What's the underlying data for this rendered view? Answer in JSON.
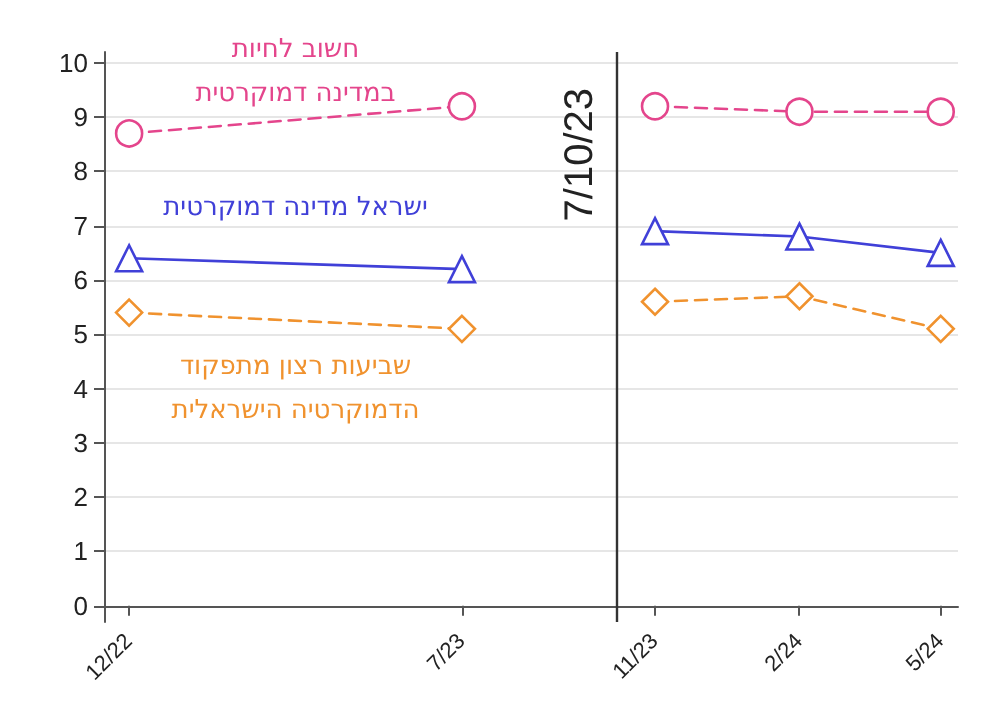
{
  "chart_data": {
    "type": "line",
    "x": [
      "2022-12-01",
      "2023-07-01",
      "2023-10-07",
      "2023-11-01",
      "2024-02-01",
      "2024-05-01"
    ],
    "series": [
      {
        "name": "חשוב לחיות במדינה דמוקרטית",
        "color": "#e4458c",
        "values": [
          8.7,
          9.2,
          null,
          9.2,
          9.1,
          9.1
        ],
        "marker": "circle",
        "line_style": "dashed"
      },
      {
        "name": "ישראל מדינה דמוקרטית",
        "color": "#4040d8",
        "values": [
          6.4,
          6.2,
          null,
          6.9,
          6.8,
          6.5
        ],
        "marker": "triangle",
        "line_style": "solid"
      },
      {
        "name": "שביעות רצון מתפקוד הדמוקרטיה הישראלית",
        "color": "#f0922e",
        "values": [
          5.4,
          5.1,
          null,
          5.6,
          5.7,
          5.1
        ],
        "marker": "diamond",
        "line_style": "dashed"
      }
    ],
    "xlim": [
      "2022-11-15",
      "2024-05-12"
    ],
    "xticks": [
      {
        "value": "2022-12-01",
        "label": "12/22"
      },
      {
        "value": "2023-07-01",
        "label": "7/23"
      },
      {
        "value": "2023-11-01",
        "label": "11/23"
      },
      {
        "value": "2024-02-01",
        "label": "2/24"
      },
      {
        "value": "2024-05-01",
        "label": "5/24"
      }
    ],
    "ylim": [
      -0.3,
      10.2
    ],
    "yticks": [
      0,
      1,
      2,
      3,
      4,
      5,
      6,
      7,
      8,
      9,
      10
    ],
    "grid": "y",
    "ref_lines": [
      {
        "axis": "x",
        "value": "2023-10-07",
        "label": "7/10/23",
        "color": "#333333"
      }
    ]
  }
}
